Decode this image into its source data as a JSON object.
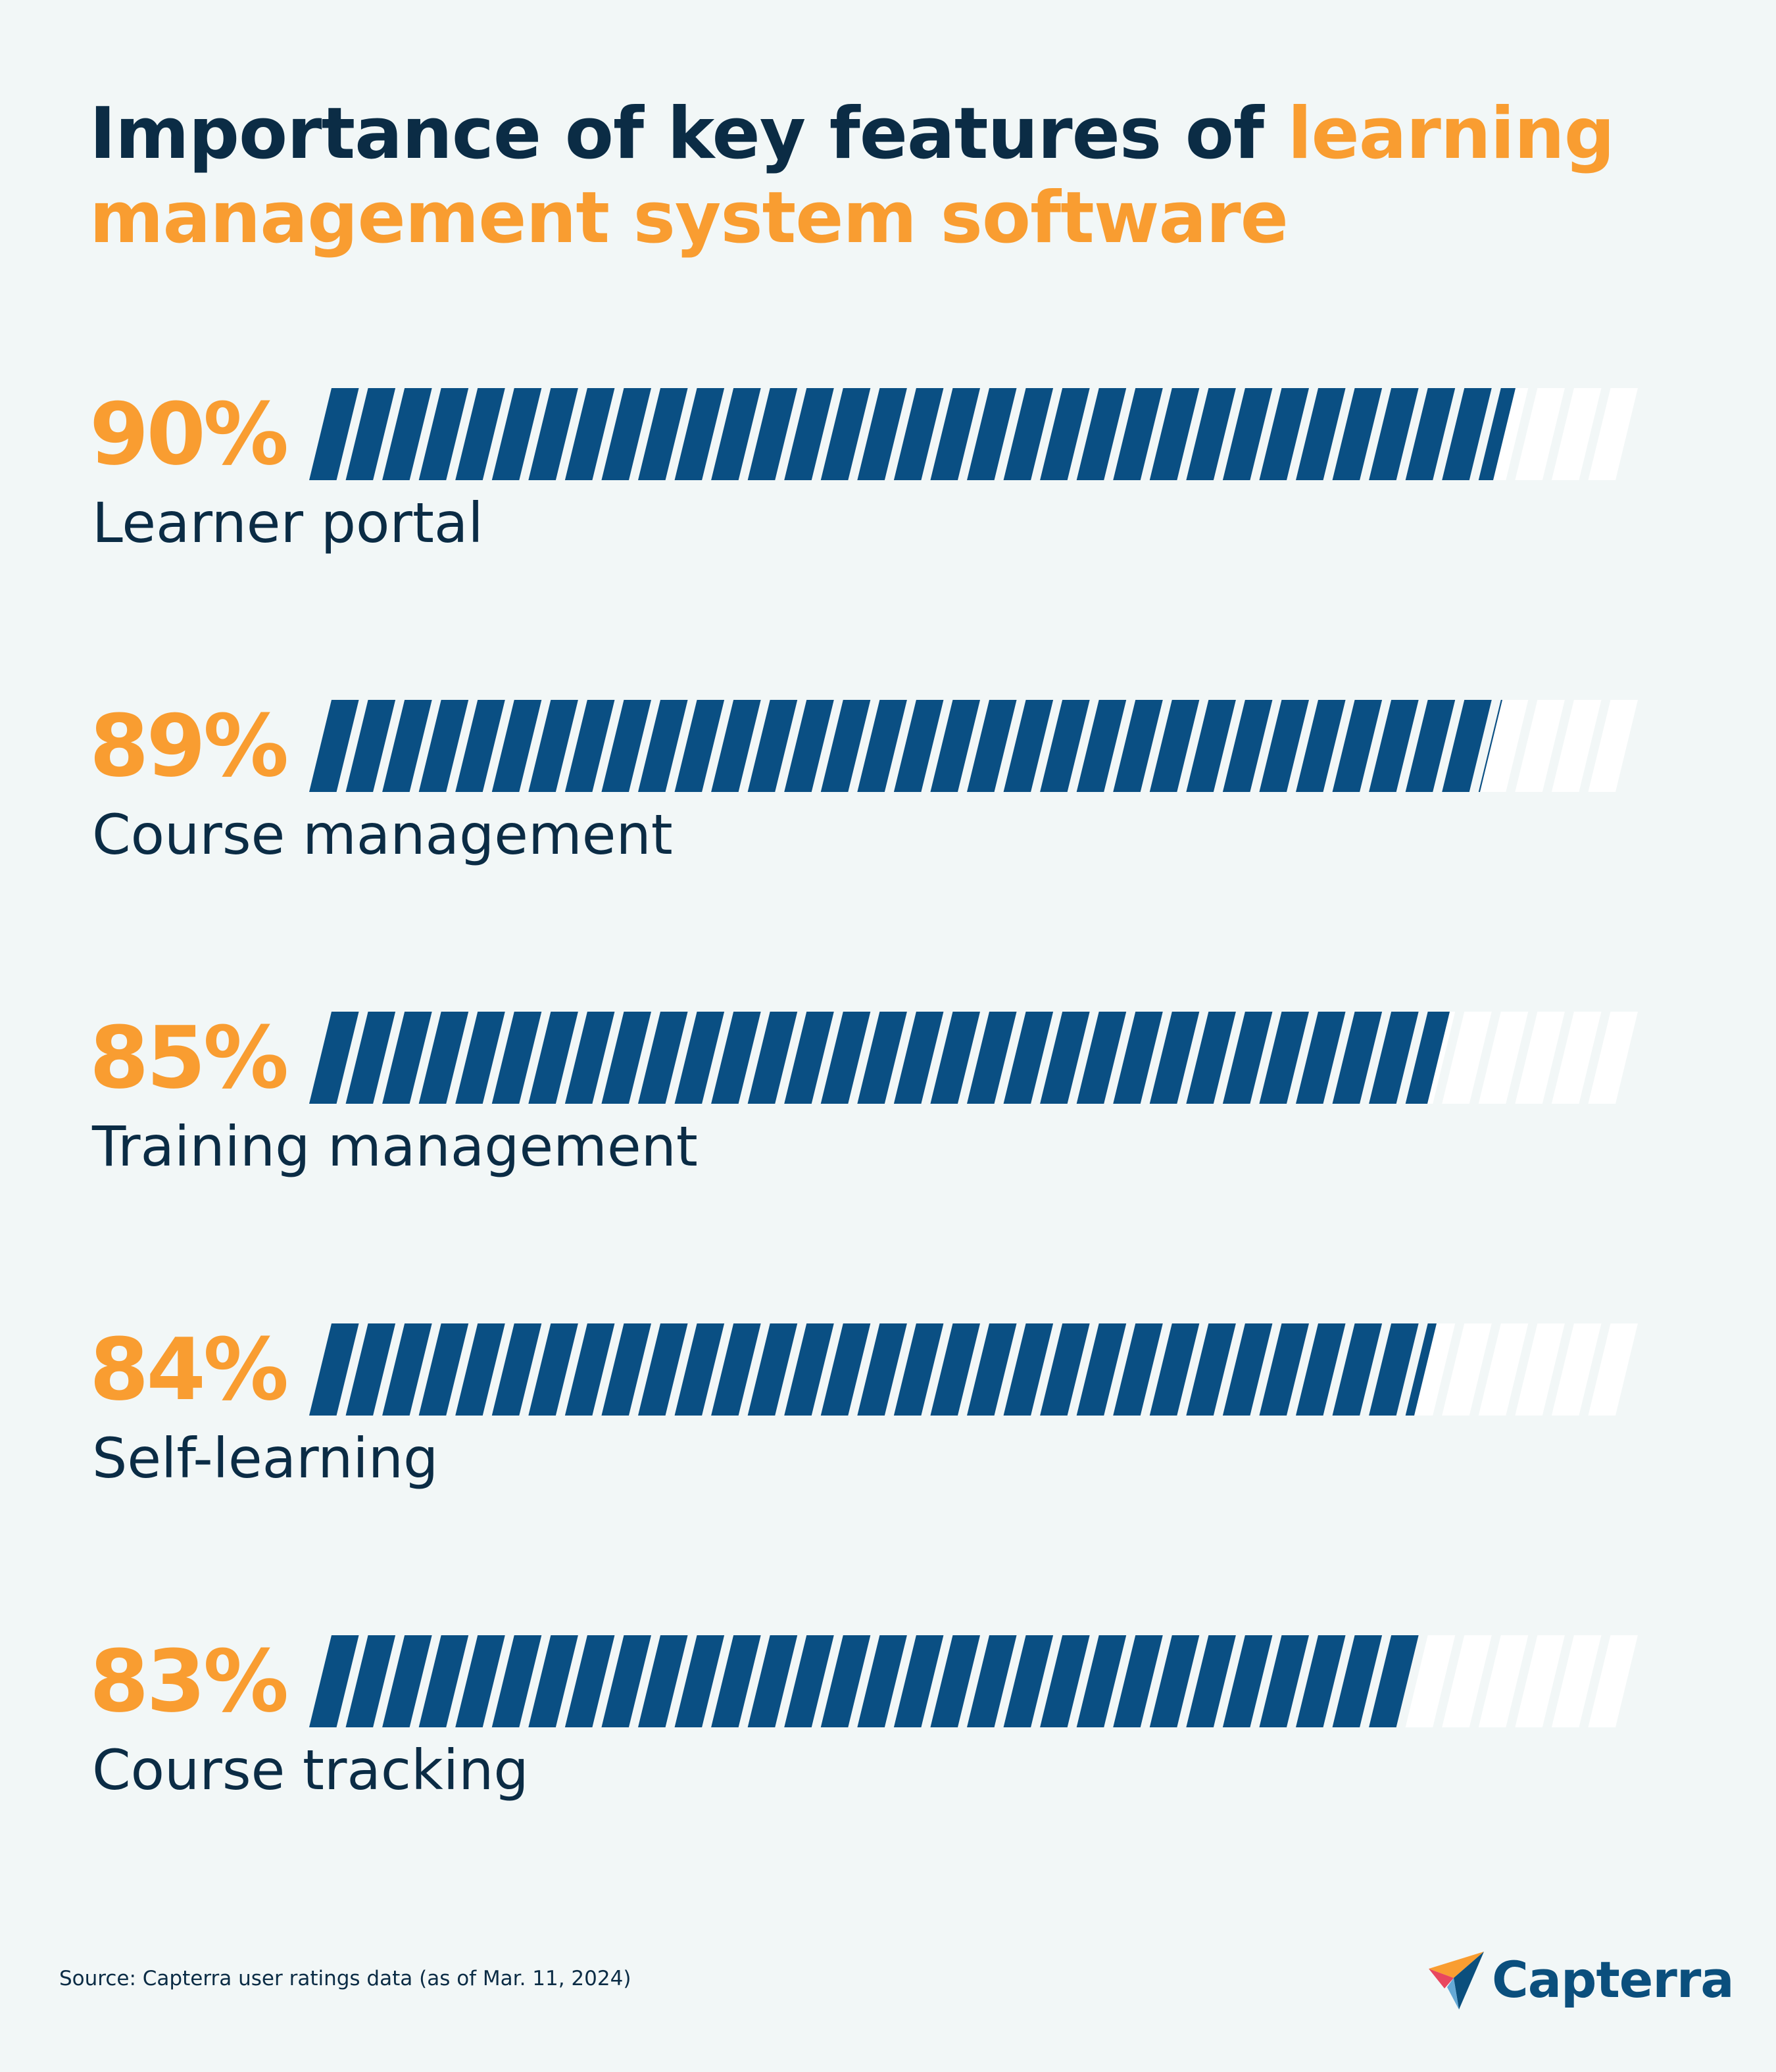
{
  "title": {
    "part1": "Importance of key features of ",
    "part2": "learning management system software"
  },
  "chart_data": {
    "type": "bar",
    "orientation": "horizontal",
    "title": "Importance of key features of learning management system software",
    "categories": [
      "Learner portal",
      "Course management",
      "Training management",
      "Self-learning",
      "Course tracking"
    ],
    "values": [
      90,
      89,
      85,
      84,
      83
    ],
    "value_labels": [
      "90%",
      "89%",
      "85%",
      "84%",
      "83%"
    ],
    "xlim": [
      0,
      100
    ],
    "unit": "%",
    "segments_per_bar": 36,
    "grid": false,
    "legend": "none"
  },
  "colors": {
    "background": "#f2f7f7",
    "fill": "#0a4f83",
    "empty": "#ffffff",
    "accent": "#f99d31",
    "text": "#0b2c45"
  },
  "footer": {
    "source": "Source: Capterra user ratings data (as of Mar. 11, 2024)",
    "brand": "Capterra",
    "brand_icon": "capterra-logo-icon"
  }
}
